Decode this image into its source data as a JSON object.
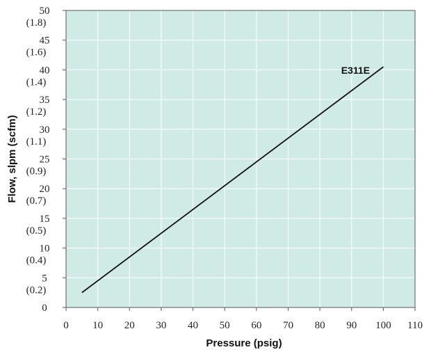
{
  "chart_data": {
    "type": "line",
    "xlabel": "Pressure (psig)",
    "ylabel": "Flow, slpm (scfm)",
    "xlim": [
      0,
      110
    ],
    "ylim": [
      0,
      50
    ],
    "x_ticks": [
      "0",
      "10",
      "20",
      "30",
      "40",
      "50",
      "60",
      "70",
      "80",
      "90",
      "100",
      "110"
    ],
    "y_ticks": [
      {
        "slpm": "0",
        "scfm": ""
      },
      {
        "slpm": "5",
        "scfm": "(0.2)"
      },
      {
        "slpm": "10",
        "scfm": "(0.4)"
      },
      {
        "slpm": "15",
        "scfm": "(0.5)"
      },
      {
        "slpm": "20",
        "scfm": "(0.7)"
      },
      {
        "slpm": "25",
        "scfm": "(0.9)"
      },
      {
        "slpm": "30",
        "scfm": "(1.1)"
      },
      {
        "slpm": "35",
        "scfm": "(1.2)"
      },
      {
        "slpm": "40",
        "scfm": "(1.4)"
      },
      {
        "slpm": "45",
        "scfm": "(1.6)"
      },
      {
        "slpm": "50",
        "scfm": "(1.8)"
      }
    ],
    "grid": true,
    "series": [
      {
        "name": "E311E",
        "x": [
          5,
          100
        ],
        "y": [
          2.5,
          40.5
        ]
      }
    ],
    "colors": {
      "plot_bg": "#d0ebe6",
      "grid": "#ffffff",
      "line": "#111111",
      "axis": "#555555"
    }
  }
}
